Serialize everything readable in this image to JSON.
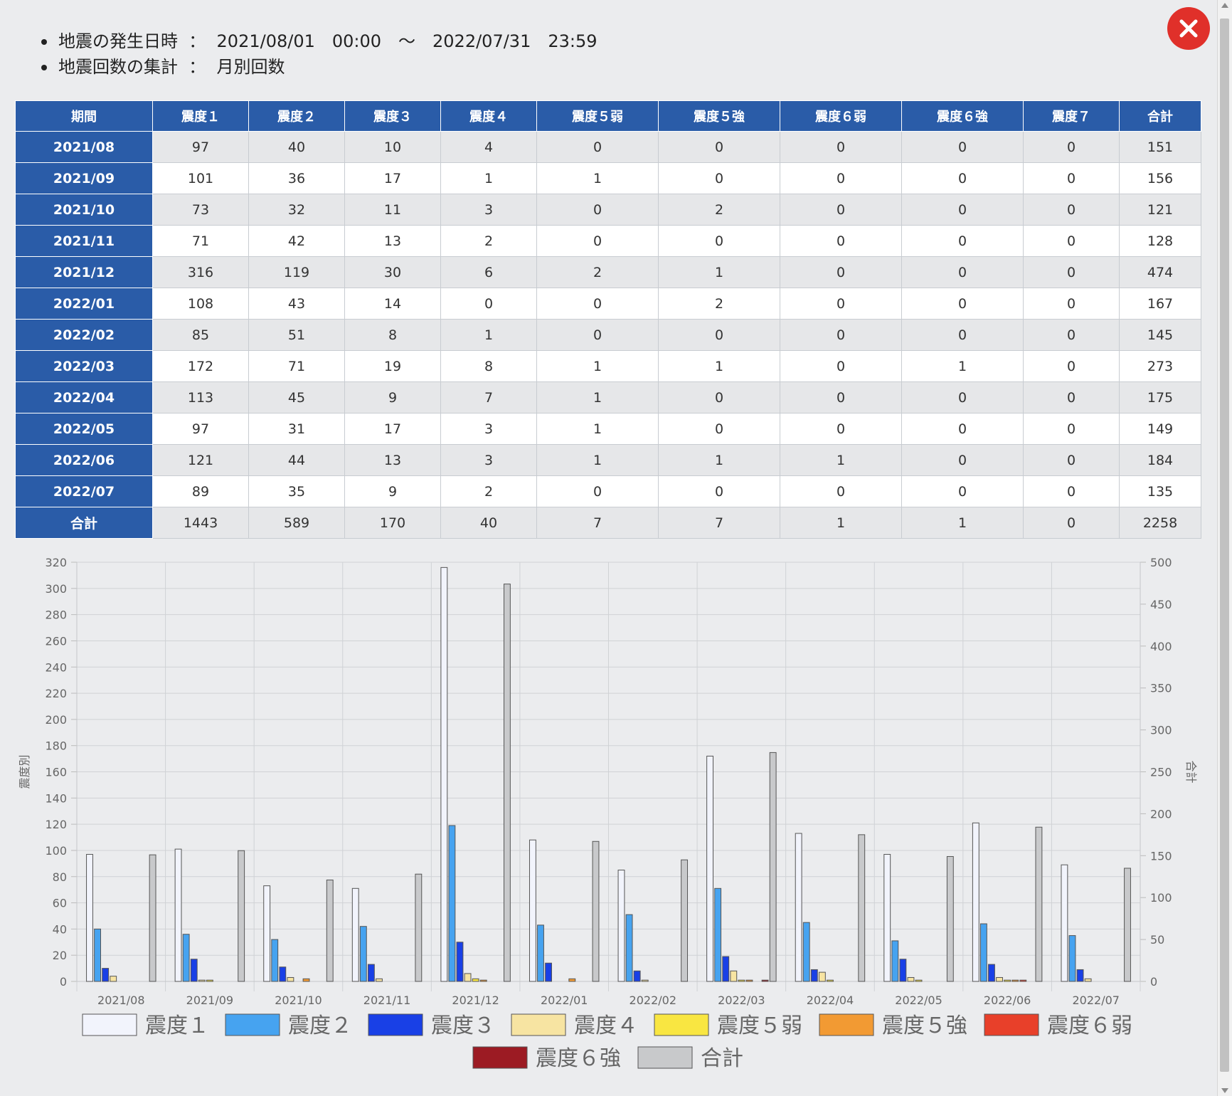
{
  "dialog": {
    "info": [
      {
        "label": "地震の発生日時",
        "value": "2021/08/01　00:00　～　2022/07/31　23:59"
      },
      {
        "label": "地震回数の集計",
        "value": "月別回数"
      }
    ],
    "separator": "：",
    "close_icon": "close-icon",
    "close_color": "#e0302a"
  },
  "table": {
    "headers": [
      "期間",
      "震度１",
      "震度２",
      "震度３",
      "震度４",
      "震度５弱",
      "震度５強",
      "震度６弱",
      "震度６強",
      "震度７",
      "合計"
    ],
    "rows": [
      {
        "period": "2021/08",
        "values": [
          97,
          40,
          10,
          4,
          0,
          0,
          0,
          0,
          0,
          151
        ]
      },
      {
        "period": "2021/09",
        "values": [
          101,
          36,
          17,
          1,
          1,
          0,
          0,
          0,
          0,
          156
        ]
      },
      {
        "period": "2021/10",
        "values": [
          73,
          32,
          11,
          3,
          0,
          2,
          0,
          0,
          0,
          121
        ]
      },
      {
        "period": "2021/11",
        "values": [
          71,
          42,
          13,
          2,
          0,
          0,
          0,
          0,
          0,
          128
        ]
      },
      {
        "period": "2021/12",
        "values": [
          316,
          119,
          30,
          6,
          2,
          1,
          0,
          0,
          0,
          474
        ]
      },
      {
        "period": "2022/01",
        "values": [
          108,
          43,
          14,
          0,
          0,
          2,
          0,
          0,
          0,
          167
        ]
      },
      {
        "period": "2022/02",
        "values": [
          85,
          51,
          8,
          1,
          0,
          0,
          0,
          0,
          0,
          145
        ]
      },
      {
        "period": "2022/03",
        "values": [
          172,
          71,
          19,
          8,
          1,
          1,
          0,
          1,
          0,
          273
        ]
      },
      {
        "period": "2022/04",
        "values": [
          113,
          45,
          9,
          7,
          1,
          0,
          0,
          0,
          0,
          175
        ]
      },
      {
        "period": "2022/05",
        "values": [
          97,
          31,
          17,
          3,
          1,
          0,
          0,
          0,
          0,
          149
        ]
      },
      {
        "period": "2022/06",
        "values": [
          121,
          44,
          13,
          3,
          1,
          1,
          1,
          0,
          0,
          184
        ]
      },
      {
        "period": "2022/07",
        "values": [
          89,
          35,
          9,
          2,
          0,
          0,
          0,
          0,
          0,
          135
        ]
      }
    ],
    "total": {
      "period": "合計",
      "values": [
        1443,
        589,
        170,
        40,
        7,
        7,
        1,
        1,
        0,
        2258
      ]
    }
  },
  "chart_data": {
    "type": "bar",
    "categories": [
      "2021/08",
      "2021/09",
      "2021/10",
      "2021/11",
      "2021/12",
      "2022/01",
      "2022/02",
      "2022/03",
      "2022/04",
      "2022/05",
      "2022/06",
      "2022/07"
    ],
    "ylabel": "震度別",
    "y2label": "合計",
    "ylim": [
      0,
      320
    ],
    "y2lim": [
      0,
      500
    ],
    "yticks": [
      0,
      20,
      40,
      60,
      80,
      100,
      120,
      140,
      160,
      180,
      200,
      220,
      240,
      260,
      280,
      300,
      320
    ],
    "y2ticks": [
      0,
      50,
      100,
      150,
      200,
      250,
      300,
      350,
      400,
      450,
      500
    ],
    "grid": true,
    "legend_position": "bottom",
    "series": [
      {
        "name": "震度１",
        "color": "#f2f4fc",
        "values": [
          97,
          101,
          73,
          71,
          316,
          108,
          85,
          172,
          113,
          97,
          121,
          89
        ],
        "axis": "left"
      },
      {
        "name": "震度２",
        "color": "#46a3f0",
        "values": [
          40,
          36,
          32,
          42,
          119,
          43,
          51,
          71,
          45,
          31,
          44,
          35
        ],
        "axis": "left"
      },
      {
        "name": "震度３",
        "color": "#1940e6",
        "values": [
          10,
          17,
          11,
          13,
          30,
          14,
          8,
          19,
          9,
          17,
          13,
          9
        ],
        "axis": "left"
      },
      {
        "name": "震度４",
        "color": "#f7e4a2",
        "values": [
          4,
          1,
          3,
          2,
          6,
          0,
          1,
          8,
          7,
          3,
          3,
          2
        ],
        "axis": "left"
      },
      {
        "name": "震度５弱",
        "color": "#f9e641",
        "values": [
          0,
          1,
          0,
          0,
          2,
          0,
          0,
          1,
          1,
          1,
          1,
          0
        ],
        "axis": "left"
      },
      {
        "name": "震度５強",
        "color": "#f29a33",
        "values": [
          0,
          0,
          2,
          0,
          1,
          2,
          0,
          1,
          0,
          0,
          1,
          0
        ],
        "axis": "left"
      },
      {
        "name": "震度６弱",
        "color": "#e8402a",
        "values": [
          0,
          0,
          0,
          0,
          0,
          0,
          0,
          0,
          0,
          0,
          1,
          0
        ],
        "axis": "left"
      },
      {
        "name": "震度６強",
        "color": "#9c1b23",
        "values": [
          0,
          0,
          0,
          0,
          0,
          0,
          0,
          1,
          0,
          0,
          0,
          0
        ],
        "axis": "left"
      },
      {
        "name": "合計",
        "color": "#c8c9cb",
        "values": [
          151,
          156,
          121,
          128,
          474,
          167,
          145,
          273,
          175,
          149,
          184,
          135
        ],
        "axis": "right"
      }
    ]
  }
}
